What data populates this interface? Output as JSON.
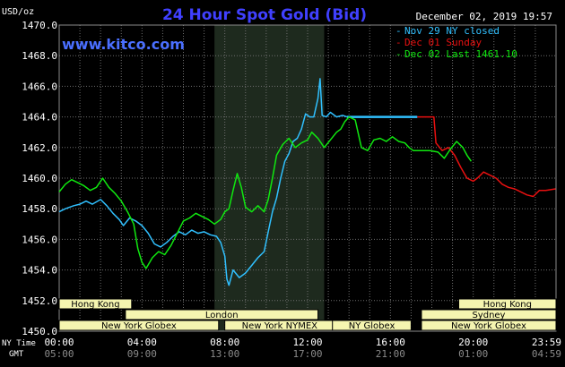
{
  "chart_data": {
    "type": "line",
    "title": "24 Hour Spot Gold (Bid)",
    "watermark": "www.kitco.com",
    "date_label": "December 02, 2019 19:57",
    "ylabel": "USD/oz",
    "ylim": [
      1450.0,
      1470.0
    ],
    "y_ticks": [
      "1450.0",
      "1452.0",
      "1454.0",
      "1456.0",
      "1458.0",
      "1460.0",
      "1462.0",
      "1464.0",
      "1466.0",
      "1468.0",
      "1470.0"
    ],
    "xlim_hours": [
      0,
      24
    ],
    "x_ticks_ny": [
      "00:00",
      "04:00",
      "08:00",
      "12:00",
      "16:00",
      "20:00",
      "23:59"
    ],
    "x_ticks_gmt": [
      "05:00",
      "09:00",
      "13:00",
      "17:00",
      "21:00",
      "01:00",
      "04:59"
    ],
    "x_tick_hours": [
      0,
      4,
      8,
      12,
      16,
      20,
      23.98
    ],
    "x_row_labels": {
      "ny": "NY Time",
      "gmt": "GMT"
    },
    "shaded_hours": [
      7.5,
      12.8
    ],
    "grid": true,
    "legend_position": "top-right",
    "colors": {
      "background": "#000000",
      "grid": "#6e6e6e",
      "title": "#4040ff",
      "watermark": "#4a6fff",
      "cyan": "#30c0ff",
      "red": "#e81010",
      "green": "#10e810",
      "session_fill": "#f5f5b0",
      "session_text": "#000000",
      "shade": "#1e2a1e"
    },
    "legend": [
      {
        "text": "Nov 29 NY closed",
        "color": "#30c0ff"
      },
      {
        "text": "Dec 01 Sunday",
        "color": "#e81010"
      },
      {
        "text": "Dec 02 Last 1461.10",
        "color": "#10e810"
      }
    ],
    "sessions": [
      {
        "name": "Hong Kong",
        "start": 0,
        "end": 3.5,
        "row": 0
      },
      {
        "name": "Hong Kong",
        "start": 19.3,
        "end": 24,
        "row": 0
      },
      {
        "name": "London",
        "start": 3.2,
        "end": 12.5,
        "row": 1
      },
      {
        "name": "Sydney",
        "start": 17.5,
        "end": 24,
        "row": 1
      },
      {
        "name": "New York Globex",
        "start": 0,
        "end": 7.7,
        "row": 2
      },
      {
        "name": "New York NYMEX",
        "start": 8.0,
        "end": 13.3,
        "row": 2
      },
      {
        "name": "NY Globex",
        "start": 13.2,
        "end": 17.0,
        "row": 2
      },
      {
        "name": "New York Globex",
        "start": 17.5,
        "end": 24,
        "row": 2
      }
    ],
    "series": [
      {
        "name": "Nov 29 NY closed",
        "color": "#30c0ff",
        "points": [
          [
            0,
            1457.8
          ],
          [
            0.3,
            1458.0
          ],
          [
            0.7,
            1458.2
          ],
          [
            1.0,
            1458.3
          ],
          [
            1.3,
            1458.5
          ],
          [
            1.6,
            1458.3
          ],
          [
            2.0,
            1458.6
          ],
          [
            2.3,
            1458.2
          ],
          [
            2.6,
            1457.7
          ],
          [
            2.9,
            1457.3
          ],
          [
            3.1,
            1456.9
          ],
          [
            3.4,
            1457.4
          ],
          [
            3.7,
            1457.2
          ],
          [
            4.0,
            1456.9
          ],
          [
            4.3,
            1456.4
          ],
          [
            4.6,
            1455.7
          ],
          [
            4.9,
            1455.5
          ],
          [
            5.2,
            1455.8
          ],
          [
            5.5,
            1456.2
          ],
          [
            5.8,
            1456.5
          ],
          [
            6.1,
            1456.3
          ],
          [
            6.4,
            1456.6
          ],
          [
            6.7,
            1456.4
          ],
          [
            7.0,
            1456.5
          ],
          [
            7.3,
            1456.3
          ],
          [
            7.6,
            1456.2
          ],
          [
            7.8,
            1455.8
          ],
          [
            8.0,
            1454.9
          ],
          [
            8.1,
            1453.4
          ],
          [
            8.2,
            1453.0
          ],
          [
            8.4,
            1454.0
          ],
          [
            8.7,
            1453.5
          ],
          [
            9.0,
            1453.8
          ],
          [
            9.3,
            1454.3
          ],
          [
            9.6,
            1454.8
          ],
          [
            9.9,
            1455.2
          ],
          [
            10.1,
            1456.5
          ],
          [
            10.3,
            1457.8
          ],
          [
            10.5,
            1458.7
          ],
          [
            10.7,
            1460.0
          ],
          [
            10.9,
            1461.1
          ],
          [
            11.1,
            1461.6
          ],
          [
            11.3,
            1462.4
          ],
          [
            11.5,
            1462.6
          ],
          [
            11.7,
            1463.2
          ],
          [
            11.9,
            1464.2
          ],
          [
            12.1,
            1464.0
          ],
          [
            12.3,
            1464.0
          ],
          [
            12.5,
            1465.2
          ],
          [
            12.6,
            1466.5
          ],
          [
            12.7,
            1464.1
          ],
          [
            12.9,
            1464.0
          ],
          [
            13.1,
            1464.3
          ],
          [
            13.4,
            1464.0
          ],
          [
            13.7,
            1464.1
          ],
          [
            13.9,
            1464.0
          ]
        ]
      },
      {
        "name": "Nov 29 NY closed (flat)",
        "color": "#30c0ff",
        "legend": false,
        "thick": true,
        "points": [
          [
            13.9,
            1464.0
          ],
          [
            17.3,
            1464.0
          ]
        ]
      },
      {
        "name": "Dec 01 Sunday",
        "color": "#e81010",
        "points": [
          [
            17.3,
            1464.0
          ],
          [
            18.1,
            1464.0
          ],
          [
            18.2,
            1462.3
          ],
          [
            18.5,
            1461.8
          ],
          [
            18.8,
            1462.0
          ],
          [
            19.1,
            1461.5
          ],
          [
            19.4,
            1460.7
          ],
          [
            19.7,
            1460.0
          ],
          [
            20.0,
            1459.8
          ],
          [
            20.2,
            1460.0
          ],
          [
            20.5,
            1460.4
          ],
          [
            20.8,
            1460.2
          ],
          [
            21.1,
            1460.0
          ],
          [
            21.4,
            1459.6
          ],
          [
            21.7,
            1459.4
          ],
          [
            22.0,
            1459.3
          ],
          [
            22.3,
            1459.1
          ],
          [
            22.6,
            1458.9
          ],
          [
            22.9,
            1458.8
          ],
          [
            23.2,
            1459.2
          ],
          [
            23.5,
            1459.2
          ],
          [
            23.98,
            1459.3
          ]
        ]
      },
      {
        "name": "Dec 02 Last 1461.10",
        "color": "#10e810",
        "points": [
          [
            0,
            1459.1
          ],
          [
            0.3,
            1459.6
          ],
          [
            0.6,
            1459.9
          ],
          [
            0.9,
            1459.7
          ],
          [
            1.2,
            1459.5
          ],
          [
            1.5,
            1459.2
          ],
          [
            1.8,
            1459.4
          ],
          [
            2.1,
            1460.0
          ],
          [
            2.4,
            1459.4
          ],
          [
            2.7,
            1459.0
          ],
          [
            3.0,
            1458.5
          ],
          [
            3.3,
            1457.8
          ],
          [
            3.6,
            1457.0
          ],
          [
            3.8,
            1455.4
          ],
          [
            4.0,
            1454.5
          ],
          [
            4.2,
            1454.1
          ],
          [
            4.5,
            1454.8
          ],
          [
            4.8,
            1455.2
          ],
          [
            5.1,
            1455.0
          ],
          [
            5.4,
            1455.6
          ],
          [
            5.7,
            1456.4
          ],
          [
            6.0,
            1457.2
          ],
          [
            6.3,
            1457.4
          ],
          [
            6.6,
            1457.7
          ],
          [
            6.9,
            1457.5
          ],
          [
            7.2,
            1457.3
          ],
          [
            7.5,
            1457.0
          ],
          [
            7.8,
            1457.3
          ],
          [
            8.0,
            1457.8
          ],
          [
            8.2,
            1458.0
          ],
          [
            8.4,
            1459.2
          ],
          [
            8.6,
            1460.3
          ],
          [
            8.8,
            1459.4
          ],
          [
            9.0,
            1458.1
          ],
          [
            9.3,
            1457.8
          ],
          [
            9.6,
            1458.2
          ],
          [
            9.9,
            1457.8
          ],
          [
            10.1,
            1458.6
          ],
          [
            10.3,
            1460.0
          ],
          [
            10.5,
            1461.5
          ],
          [
            10.8,
            1462.2
          ],
          [
            11.1,
            1462.6
          ],
          [
            11.4,
            1462.0
          ],
          [
            11.7,
            1462.3
          ],
          [
            12.0,
            1462.5
          ],
          [
            12.2,
            1463.0
          ],
          [
            12.5,
            1462.6
          ],
          [
            12.8,
            1462.0
          ],
          [
            13.1,
            1462.5
          ],
          [
            13.4,
            1463.0
          ],
          [
            13.6,
            1463.2
          ],
          [
            13.8,
            1463.7
          ],
          [
            14.0,
            1464.0
          ],
          [
            14.3,
            1463.8
          ],
          [
            14.6,
            1462.0
          ],
          [
            14.9,
            1461.8
          ],
          [
            15.2,
            1462.5
          ],
          [
            15.5,
            1462.6
          ],
          [
            15.8,
            1462.4
          ],
          [
            16.1,
            1462.7
          ],
          [
            16.4,
            1462.4
          ],
          [
            16.7,
            1462.3
          ],
          [
            16.9,
            1462.0
          ],
          [
            17.1,
            1461.8
          ],
          [
            17.5,
            1461.8
          ],
          [
            17.9,
            1461.8
          ],
          [
            18.3,
            1461.7
          ],
          [
            18.6,
            1461.3
          ],
          [
            18.9,
            1461.9
          ],
          [
            19.2,
            1462.4
          ],
          [
            19.5,
            1462.0
          ],
          [
            19.7,
            1461.5
          ],
          [
            19.9,
            1461.1
          ]
        ]
      }
    ]
  }
}
